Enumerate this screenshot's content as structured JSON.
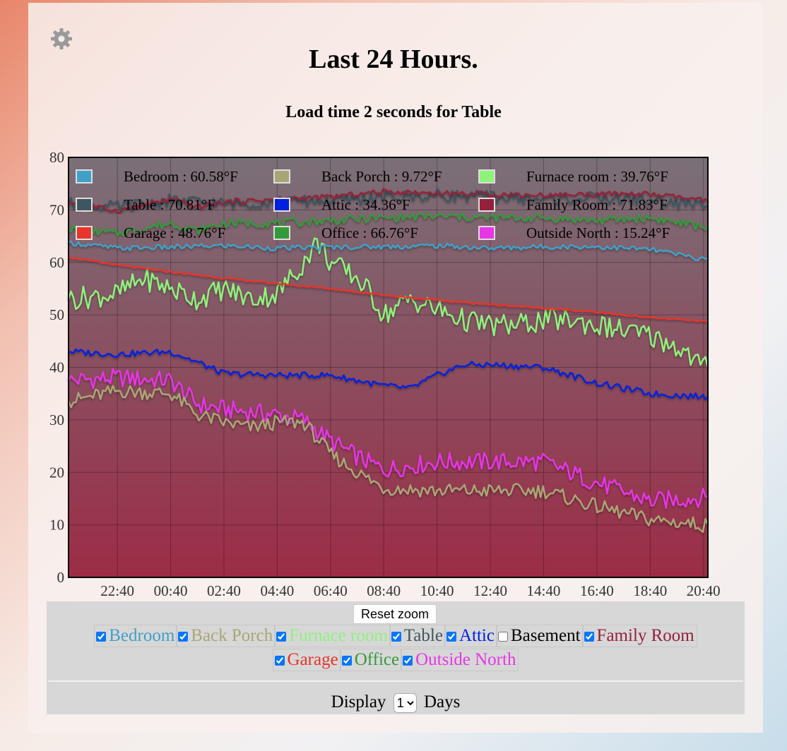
{
  "page": {
    "title": "Last 24 Hours.",
    "subtitle": "Load time 2 seconds for Table",
    "settings_icon": "gear-icon"
  },
  "chart_data": {
    "type": "line",
    "unit": "°F",
    "ylim": [
      0,
      80
    ],
    "yticks": [
      0,
      10,
      20,
      30,
      40,
      50,
      60,
      70,
      80
    ],
    "xlim": [
      "20:50",
      "20:50"
    ],
    "xticks": [
      "22:40",
      "00:40",
      "02:40",
      "04:40",
      "06:40",
      "08:40",
      "10:40",
      "12:40",
      "14:40",
      "16:40",
      "18:40",
      "20:40"
    ],
    "grid": true,
    "legend_position": "top-inside",
    "background": {
      "top": "#7a7078",
      "bottom": "#9c2c46"
    },
    "series": [
      {
        "name": "Bedroom",
        "current": "60.58°F",
        "color": "#3fa0c8",
        "x": [
          "20:50",
          "22:40",
          "00:40",
          "02:40",
          "04:40",
          "06:40",
          "08:40",
          "10:40",
          "12:40",
          "14:40",
          "16:40",
          "18:40",
          "20:40"
        ],
        "y": [
          63.8,
          62.7,
          62.9,
          63.2,
          62.7,
          62.9,
          63.0,
          63.2,
          62.7,
          63.0,
          63.0,
          62.5,
          60.6
        ]
      },
      {
        "name": "Back Porch",
        "current": "9.72°F",
        "color": "#a9a676",
        "x": [
          "20:50",
          "22:40",
          "00:40",
          "01:40",
          "02:40",
          "03:40",
          "04:40",
          "05:40",
          "06:40",
          "07:40",
          "08:40",
          "10:40",
          "12:40",
          "14:40",
          "16:40",
          "18:40",
          "20:40"
        ],
        "y": [
          33.5,
          35.5,
          35.0,
          31.0,
          29.5,
          28.5,
          29.5,
          29.5,
          23.5,
          20.0,
          17.0,
          16.5,
          16.5,
          16.5,
          13.5,
          11.0,
          10.0
        ]
      },
      {
        "name": "Furnace room",
        "current": "39.76°F",
        "color": "#8ef27c",
        "x": [
          "20:50",
          "22:40",
          "23:40",
          "00:40",
          "01:40",
          "02:40",
          "03:40",
          "04:40",
          "05:40",
          "06:10",
          "06:40",
          "07:40",
          "08:10",
          "08:40",
          "09:40",
          "10:40",
          "11:40",
          "12:40",
          "13:40",
          "14:40",
          "15:40",
          "16:40",
          "17:40",
          "18:40",
          "19:40",
          "20:40"
        ],
        "y": [
          53,
          54,
          57,
          55,
          53,
          55,
          53,
          54,
          60,
          64,
          60,
          57,
          54,
          50,
          53,
          51,
          49,
          48,
          48,
          49,
          49,
          48,
          47,
          46,
          44,
          40
        ]
      },
      {
        "name": "Table",
        "current": "70.81°F",
        "color": "#3d5660",
        "x": [
          "20:50",
          "22:40",
          "00:40",
          "02:40",
          "04:40",
          "06:40",
          "08:40",
          "10:40",
          "12:40",
          "14:40",
          "16:40",
          "18:40",
          "20:40"
        ],
        "y": [
          71.2,
          70.5,
          71.8,
          71.2,
          71.5,
          71.8,
          72.3,
          72.8,
          72.5,
          72.0,
          72.3,
          71.8,
          70.8
        ]
      },
      {
        "name": "Attic",
        "current": "34.36°F",
        "color": "#0020e0",
        "x": [
          "20:50",
          "22:40",
          "00:40",
          "01:40",
          "02:40",
          "04:40",
          "06:40",
          "08:40",
          "09:40",
          "10:40",
          "11:40",
          "12:40",
          "14:40",
          "16:40",
          "18:40",
          "20:40"
        ],
        "y": [
          43,
          42.5,
          43,
          41,
          38.8,
          38.5,
          38.5,
          36.5,
          36,
          38.5,
          40.5,
          40.5,
          40,
          37,
          35,
          34.4
        ]
      },
      {
        "name": "Basement",
        "current": "",
        "color": "#000000",
        "visible": false,
        "x": [],
        "y": []
      },
      {
        "name": "Family Room",
        "current": "71.83°F",
        "color": "#94203a",
        "x": [
          "20:50",
          "22:40",
          "00:40",
          "01:40",
          "02:40",
          "04:40",
          "06:40",
          "08:40",
          "10:40",
          "12:40",
          "14:40",
          "16:40",
          "18:40",
          "20:40"
        ],
        "y": [
          71.5,
          69.8,
          72.0,
          70.5,
          71.5,
          72.0,
          72.5,
          73.5,
          73.2,
          73.0,
          72.8,
          73.0,
          73.0,
          71.8
        ]
      },
      {
        "name": "Garage",
        "current": "48.76°F",
        "color": "#e8342a",
        "x": [
          "20:50",
          "22:40",
          "00:40",
          "02:40",
          "04:40",
          "06:40",
          "08:40",
          "10:40",
          "12:40",
          "14:40",
          "16:40",
          "18:40",
          "20:40"
        ],
        "y": [
          61,
          59.5,
          58.2,
          57.0,
          56.0,
          55.0,
          53.8,
          52.8,
          52.0,
          51.3,
          50.5,
          49.5,
          48.8
        ]
      },
      {
        "name": "Office",
        "current": "66.76°F",
        "color": "#349a3a",
        "x": [
          "20:50",
          "22:40",
          "00:40",
          "01:40",
          "02:40",
          "04:40",
          "06:40",
          "08:40",
          "10:40",
          "12:40",
          "14:40",
          "16:40",
          "18:40",
          "20:40"
        ],
        "y": [
          66.5,
          65.5,
          67.5,
          66,
          67.5,
          67.5,
          68.0,
          68.5,
          68.8,
          68.5,
          68.5,
          68.0,
          68.5,
          66.8
        ]
      },
      {
        "name": "Outside North",
        "current": "15.24°F",
        "color": "#e636e6",
        "x": [
          "20:50",
          "22:40",
          "00:40",
          "01:40",
          "02:40",
          "03:40",
          "04:40",
          "05:40",
          "06:40",
          "07:40",
          "08:40",
          "10:40",
          "12:40",
          "14:40",
          "16:40",
          "18:40",
          "20:40"
        ],
        "y": [
          37.5,
          38,
          37.5,
          33,
          32,
          31.5,
          31,
          30,
          26,
          23,
          20.5,
          22,
          22,
          22,
          18,
          14.5,
          15.2
        ]
      }
    ]
  },
  "controls": {
    "reset_zoom_label": "Reset zoom",
    "series_toggles": [
      {
        "label": "Bedroom",
        "checked": true,
        "color": "#3fa0c8"
      },
      {
        "label": "Back Porch",
        "checked": true,
        "color": "#a9a676"
      },
      {
        "label": "Furnace room",
        "checked": true,
        "color": "#8ef27c"
      },
      {
        "label": "Table",
        "checked": true,
        "color": "#3d5660"
      },
      {
        "label": "Attic",
        "checked": true,
        "color": "#0020e0"
      },
      {
        "label": "Basement",
        "checked": false,
        "color": "#000000"
      },
      {
        "label": "Family Room",
        "checked": true,
        "color": "#94203a"
      },
      {
        "label": "Garage",
        "checked": true,
        "color": "#e8342a"
      },
      {
        "label": "Office",
        "checked": true,
        "color": "#349a3a"
      },
      {
        "label": "Outside North",
        "checked": true,
        "color": "#e636e6"
      }
    ],
    "display_prefix": "Display",
    "display_value": "1",
    "display_suffix": "Days"
  }
}
